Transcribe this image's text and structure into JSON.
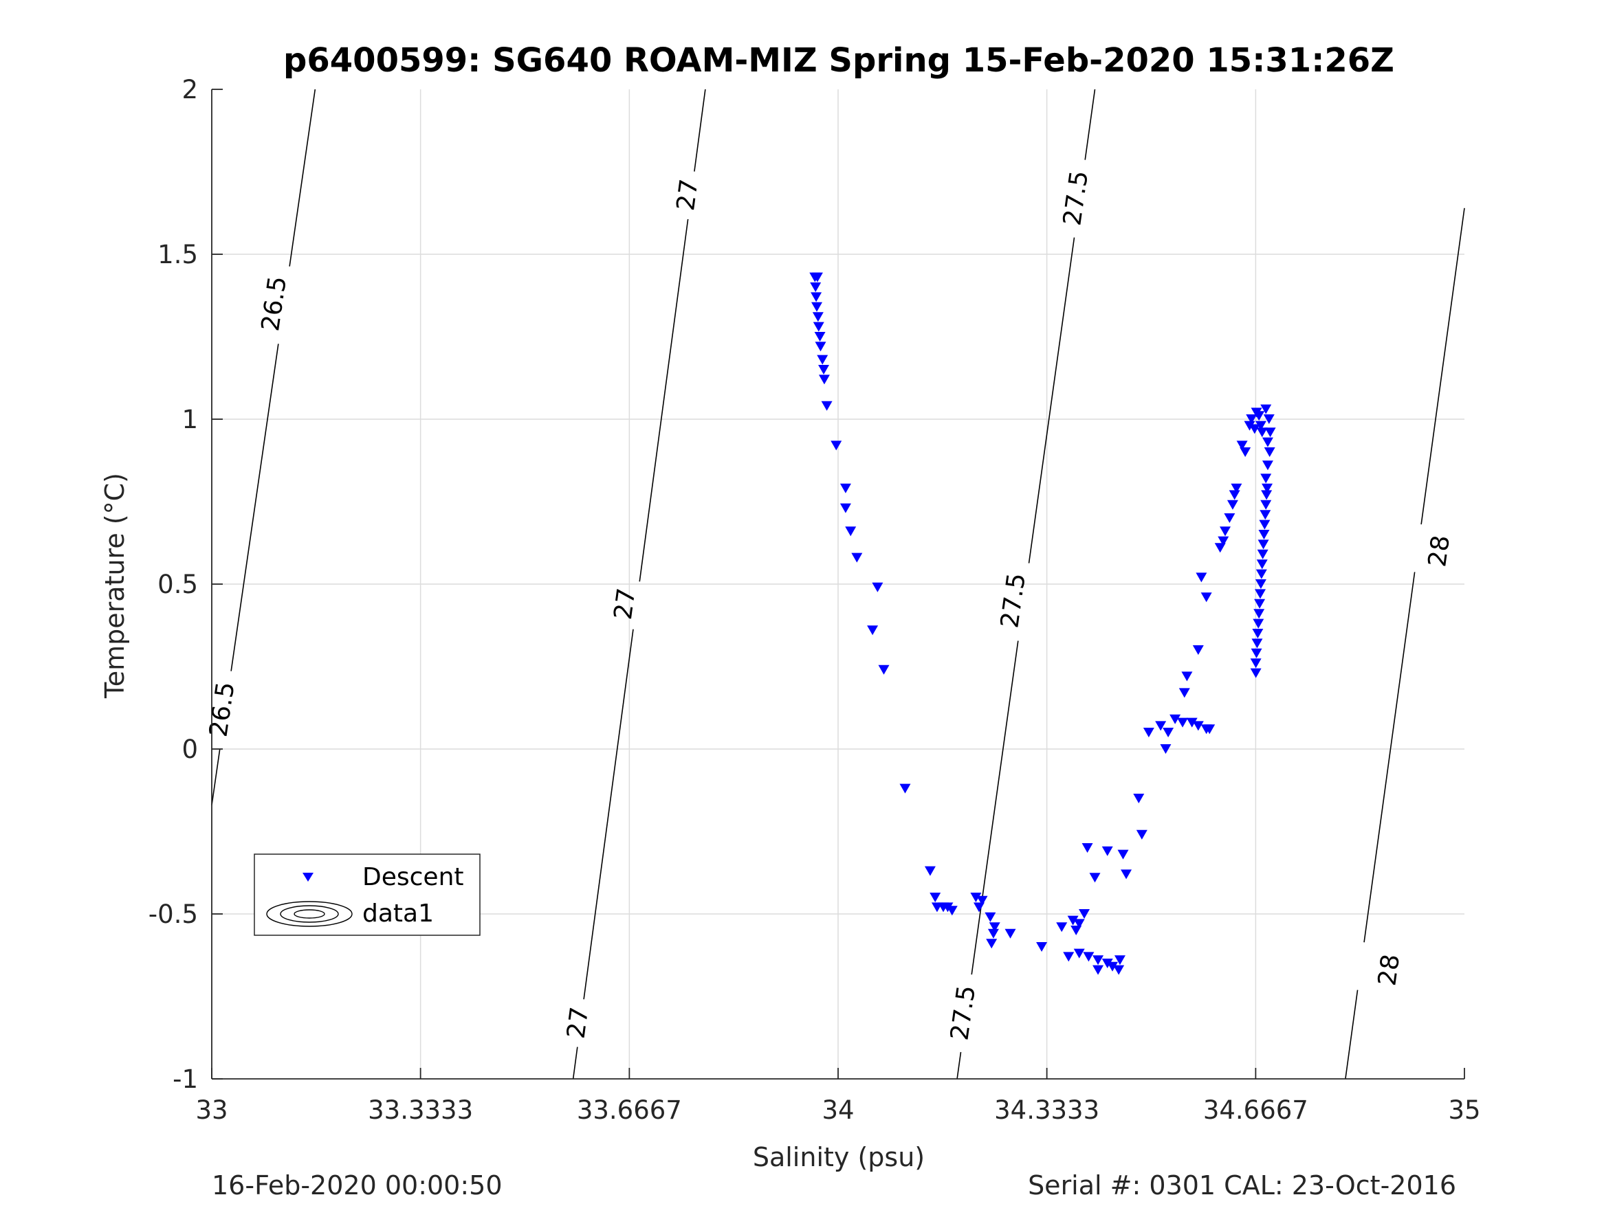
{
  "chart_data": {
    "type": "scatter",
    "title": "p6400599: SG640 ROAM-MIZ Spring 15-Feb-2020 15:31:26Z",
    "xlabel": "Salinity (psu)",
    "ylabel": "Temperature (°C)",
    "xlim": [
      33,
      35
    ],
    "ylim": [
      -1,
      2
    ],
    "xticks": [
      33,
      33.3333,
      33.6667,
      34,
      34.3333,
      34.6667,
      35
    ],
    "xtick_labels": [
      "33",
      "33.3333",
      "33.6667",
      "34",
      "34.3333",
      "34.6667",
      "35"
    ],
    "yticks": [
      -1,
      -0.5,
      0,
      0.5,
      1,
      1.5,
      2
    ],
    "ytick_labels": [
      "-1",
      "-0.5",
      "0",
      "0.5",
      "1",
      "1.5",
      "2"
    ],
    "grid": true,
    "legend_position": "lower-left",
    "legend": [
      "Descent",
      "data1"
    ],
    "footer_left": "16-Feb-2020 00:00:50",
    "footer_right": "Serial #: 0301  CAL: 23-Oct-2016",
    "colors": {
      "descent": "#0000ff",
      "contour": "#000000",
      "grid": "#dcdcdc"
    },
    "contours": [
      {
        "level": "26.5",
        "points": [
          [
            33.0,
            -0.17
          ],
          [
            33.165,
            2.0
          ]
        ],
        "labels": [
          {
            "s": 33.1,
            "t": 1.35
          },
          {
            "s": 33.017,
            "t": 0.12
          }
        ]
      },
      {
        "level": "27",
        "points": [
          [
            33.577,
            -1.0
          ],
          [
            33.788,
            2.0
          ]
        ],
        "labels": [
          {
            "s": 33.76,
            "t": 1.68
          },
          {
            "s": 33.66,
            "t": 0.44
          },
          {
            "s": 33.585,
            "t": -0.83
          }
        ]
      },
      {
        "level": "27.5",
        "points": [
          [
            34.19,
            -1.0
          ],
          [
            34.41,
            2.0
          ]
        ],
        "labels": [
          {
            "s": 34.38,
            "t": 1.67
          },
          {
            "s": 34.28,
            "t": 0.45
          },
          {
            "s": 34.2,
            "t": -0.8
          }
        ]
      },
      {
        "level": "28",
        "points": [
          [
            34.81,
            -1.0
          ],
          [
            35.0,
            1.64
          ]
        ],
        "labels": [
          {
            "s": 34.96,
            "t": 0.6
          },
          {
            "s": 34.88,
            "t": -0.67
          }
        ]
      }
    ],
    "series": [
      {
        "name": "Descent",
        "marker": "triangle-down",
        "points": [
          [
            33.963,
            1.43
          ],
          [
            33.967,
            1.43
          ],
          [
            33.964,
            1.4
          ],
          [
            33.965,
            1.37
          ],
          [
            33.966,
            1.34
          ],
          [
            33.968,
            1.31
          ],
          [
            33.969,
            1.28
          ],
          [
            33.971,
            1.25
          ],
          [
            33.972,
            1.22
          ],
          [
            33.975,
            1.18
          ],
          [
            33.977,
            1.15
          ],
          [
            33.978,
            1.12
          ],
          [
            33.982,
            1.04
          ],
          [
            33.997,
            0.92
          ],
          [
            34.012,
            0.79
          ],
          [
            34.012,
            0.73
          ],
          [
            34.02,
            0.66
          ],
          [
            34.03,
            0.58
          ],
          [
            34.063,
            0.49
          ],
          [
            34.055,
            0.36
          ],
          [
            34.073,
            0.24
          ],
          [
            34.107,
            -0.12
          ],
          [
            34.147,
            -0.37
          ],
          [
            34.155,
            -0.45
          ],
          [
            34.158,
            -0.48
          ],
          [
            34.168,
            -0.48
          ],
          [
            34.175,
            -0.48
          ],
          [
            34.182,
            -0.49
          ],
          [
            34.22,
            -0.45
          ],
          [
            34.23,
            -0.46
          ],
          [
            34.225,
            -0.48
          ],
          [
            34.243,
            -0.51
          ],
          [
            34.25,
            -0.54
          ],
          [
            34.248,
            -0.56
          ],
          [
            34.245,
            -0.59
          ],
          [
            34.275,
            -0.56
          ],
          [
            34.325,
            -0.6
          ],
          [
            34.357,
            -0.54
          ],
          [
            34.375,
            -0.52
          ],
          [
            34.385,
            -0.53
          ],
          [
            34.38,
            -0.55
          ],
          [
            34.393,
            -0.5
          ],
          [
            34.368,
            -0.63
          ],
          [
            34.385,
            -0.62
          ],
          [
            34.4,
            -0.63
          ],
          [
            34.415,
            -0.64
          ],
          [
            34.43,
            -0.65
          ],
          [
            34.438,
            -0.66
          ],
          [
            34.45,
            -0.64
          ],
          [
            34.448,
            -0.67
          ],
          [
            34.415,
            -0.67
          ],
          [
            34.398,
            -0.3
          ],
          [
            34.41,
            -0.39
          ],
          [
            34.43,
            -0.31
          ],
          [
            34.455,
            -0.32
          ],
          [
            34.46,
            -0.38
          ],
          [
            34.48,
            -0.15
          ],
          [
            34.485,
            -0.26
          ],
          [
            34.496,
            0.05
          ],
          [
            34.523,
            0.0
          ],
          [
            34.515,
            0.07
          ],
          [
            34.527,
            0.05
          ],
          [
            34.538,
            0.09
          ],
          [
            34.55,
            0.08
          ],
          [
            34.565,
            0.08
          ],
          [
            34.575,
            0.07
          ],
          [
            34.593,
            0.06
          ],
          [
            34.588,
            0.06
          ],
          [
            34.553,
            0.17
          ],
          [
            34.557,
            0.22
          ],
          [
            34.575,
            0.3
          ],
          [
            34.588,
            0.46
          ],
          [
            34.58,
            0.52
          ],
          [
            34.61,
            0.61
          ],
          [
            34.615,
            0.63
          ],
          [
            34.618,
            0.66
          ],
          [
            34.625,
            0.7
          ],
          [
            34.63,
            0.74
          ],
          [
            34.633,
            0.77
          ],
          [
            34.636,
            0.79
          ],
          [
            34.645,
            0.92
          ],
          [
            34.65,
            0.9
          ],
          [
            34.657,
            0.98
          ],
          [
            34.66,
            1.0
          ],
          [
            34.665,
            0.97
          ],
          [
            34.668,
            1.02
          ],
          [
            34.672,
            1.01
          ],
          [
            34.675,
            0.98
          ],
          [
            34.677,
            0.96
          ],
          [
            34.683,
            1.03
          ],
          [
            34.688,
            1.0
          ],
          [
            34.69,
            0.96
          ],
          [
            34.686,
            0.93
          ],
          [
            34.689,
            0.9
          ],
          [
            34.686,
            0.86
          ],
          [
            34.683,
            0.82
          ],
          [
            34.685,
            0.79
          ],
          [
            34.684,
            0.77
          ],
          [
            34.683,
            0.74
          ],
          [
            34.682,
            0.71
          ],
          [
            34.681,
            0.68
          ],
          [
            34.68,
            0.65
          ],
          [
            34.679,
            0.62
          ],
          [
            34.678,
            0.59
          ],
          [
            34.677,
            0.56
          ],
          [
            34.676,
            0.53
          ],
          [
            34.675,
            0.5
          ],
          [
            34.674,
            0.47
          ],
          [
            34.673,
            0.44
          ],
          [
            34.672,
            0.41
          ],
          [
            34.671,
            0.38
          ],
          [
            34.67,
            0.35
          ],
          [
            34.669,
            0.32
          ],
          [
            34.668,
            0.29
          ],
          [
            34.667,
            0.26
          ],
          [
            34.667,
            0.23
          ]
        ]
      }
    ]
  }
}
